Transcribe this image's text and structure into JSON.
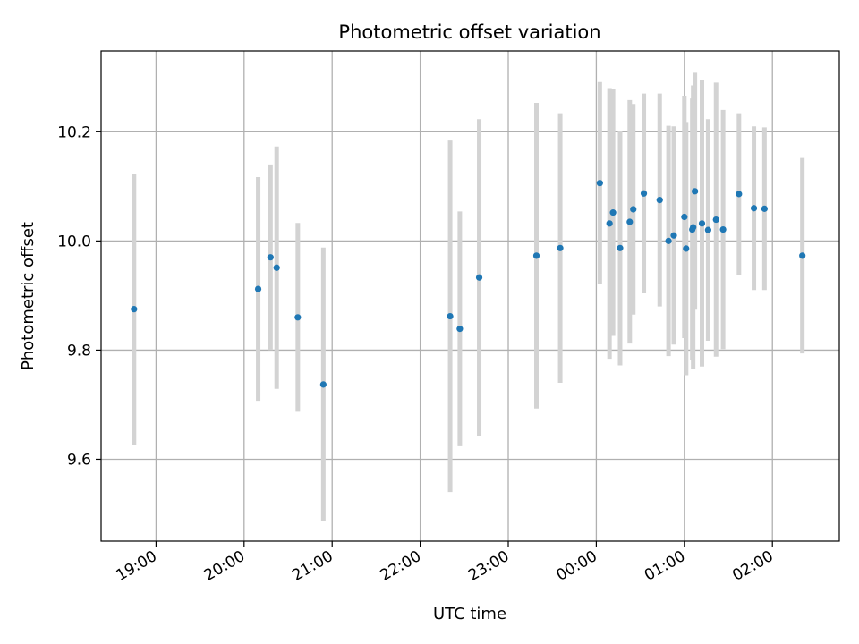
{
  "chart_data": {
    "type": "scatter",
    "title": "Photometric offset variation",
    "xlabel": "UTC time",
    "ylabel": "Photometric offset",
    "grid": true,
    "colors": {
      "point": "#1f77b4",
      "errorbar": "#d3d3d3",
      "grid": "#b0b0b0",
      "axes": "#000000"
    },
    "xlim": [
      -0.624,
      7.76
    ],
    "ylim": [
      9.45,
      10.348
    ],
    "x_ticks": [
      {
        "value": 0,
        "label": "19:00"
      },
      {
        "value": 1,
        "label": "20:00"
      },
      {
        "value": 2,
        "label": "21:00"
      },
      {
        "value": 3,
        "label": "22:00"
      },
      {
        "value": 4,
        "label": "23:00"
      },
      {
        "value": 5,
        "label": "00:00"
      },
      {
        "value": 6,
        "label": "01:00"
      },
      {
        "value": 7,
        "label": "02:00"
      }
    ],
    "y_ticks": [
      {
        "value": 9.6,
        "label": "9.6"
      },
      {
        "value": 9.8,
        "label": "9.8"
      },
      {
        "value": 10.0,
        "label": "10.0"
      },
      {
        "value": 10.2,
        "label": "10.2"
      }
    ],
    "x_units": "hours after 19:00 UTC",
    "points": [
      {
        "x": -0.25,
        "y": 9.875,
        "err": 0.248
      },
      {
        "x": 1.16,
        "y": 9.912,
        "err": 0.205
      },
      {
        "x": 1.3,
        "y": 9.97,
        "err": 0.17
      },
      {
        "x": 1.37,
        "y": 9.951,
        "err": 0.222
      },
      {
        "x": 1.61,
        "y": 9.86,
        "err": 0.173
      },
      {
        "x": 1.9,
        "y": 9.737,
        "err": 0.251
      },
      {
        "x": 3.34,
        "y": 9.862,
        "err": 0.322
      },
      {
        "x": 3.45,
        "y": 9.839,
        "err": 0.215
      },
      {
        "x": 3.67,
        "y": 9.933,
        "err": 0.29
      },
      {
        "x": 4.32,
        "y": 9.973,
        "err": 0.28
      },
      {
        "x": 4.59,
        "y": 9.987,
        "err": 0.247
      },
      {
        "x": 5.04,
        "y": 10.106,
        "err": 0.185
      },
      {
        "x": 5.15,
        "y": 10.032,
        "err": 0.248
      },
      {
        "x": 5.19,
        "y": 10.052,
        "err": 0.226
      },
      {
        "x": 5.27,
        "y": 9.987,
        "err": 0.215
      },
      {
        "x": 5.38,
        "y": 10.035,
        "err": 0.223
      },
      {
        "x": 5.42,
        "y": 10.058,
        "err": 0.193
      },
      {
        "x": 5.54,
        "y": 10.087,
        "err": 0.183
      },
      {
        "x": 5.72,
        "y": 10.075,
        "err": 0.195
      },
      {
        "x": 5.82,
        "y": 10.0,
        "err": 0.211
      },
      {
        "x": 5.88,
        "y": 10.01,
        "err": 0.2
      },
      {
        "x": 6.0,
        "y": 10.044,
        "err": 0.222
      },
      {
        "x": 6.02,
        "y": 9.986,
        "err": 0.232
      },
      {
        "x": 6.09,
        "y": 10.021,
        "err": 0.24
      },
      {
        "x": 6.1,
        "y": 10.025,
        "err": 0.26
      },
      {
        "x": 6.12,
        "y": 10.091,
        "err": 0.217
      },
      {
        "x": 6.2,
        "y": 10.032,
        "err": 0.262
      },
      {
        "x": 6.27,
        "y": 10.02,
        "err": 0.203
      },
      {
        "x": 6.36,
        "y": 10.039,
        "err": 0.251
      },
      {
        "x": 6.44,
        "y": 10.021,
        "err": 0.219
      },
      {
        "x": 6.62,
        "y": 10.086,
        "err": 0.148
      },
      {
        "x": 6.79,
        "y": 10.06,
        "err": 0.15
      },
      {
        "x": 6.91,
        "y": 10.059,
        "err": 0.149
      },
      {
        "x": 7.34,
        "y": 9.973,
        "err": 0.179
      }
    ]
  }
}
